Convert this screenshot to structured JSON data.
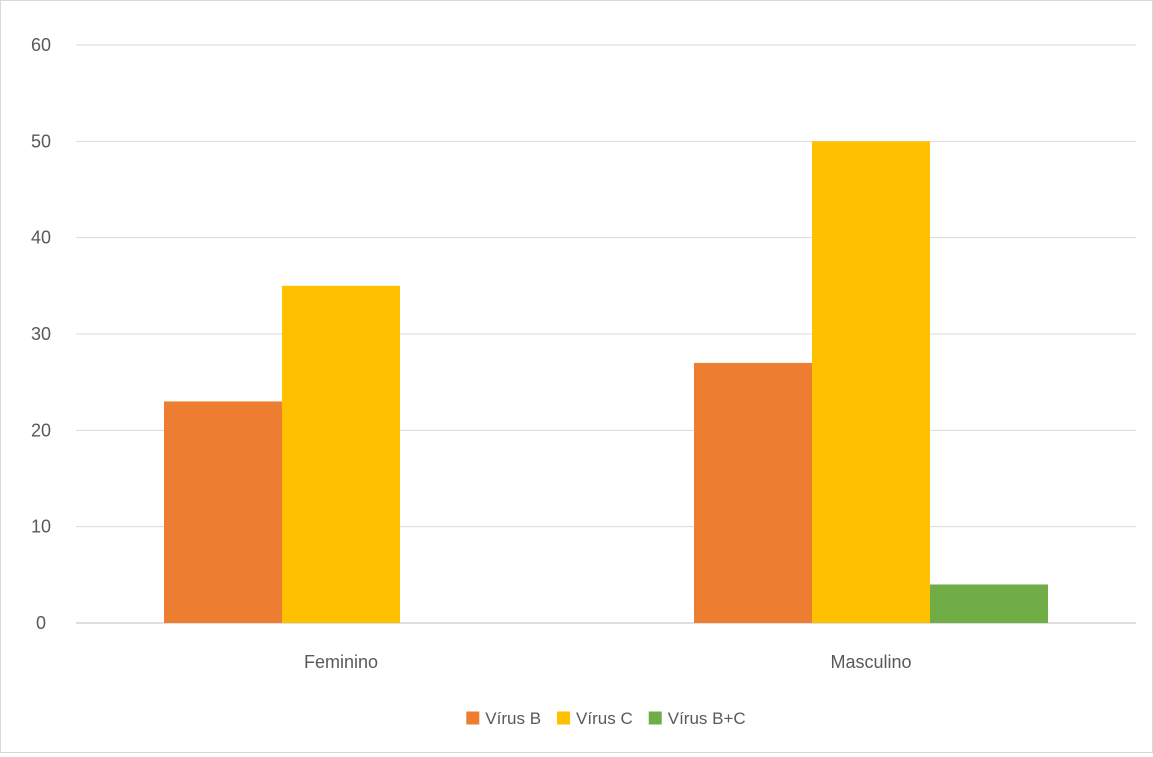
{
  "chart_data": {
    "type": "bar",
    "title": "",
    "xlabel": "",
    "ylabel": "",
    "categories": [
      "Feminino",
      "Masculino"
    ],
    "series": [
      {
        "name": "Vírus B",
        "values": [
          23,
          27
        ],
        "color": "#ED7D31"
      },
      {
        "name": "Vírus C",
        "values": [
          35,
          50
        ],
        "color": "#FFC000"
      },
      {
        "name": "Vírus B+C",
        "values": [
          0,
          4
        ],
        "color": "#70AD47"
      }
    ],
    "ylim": [
      0,
      60
    ],
    "yticks": [
      0,
      10,
      20,
      30,
      40,
      50,
      60
    ],
    "grid": true,
    "legend": "bottom-center"
  }
}
